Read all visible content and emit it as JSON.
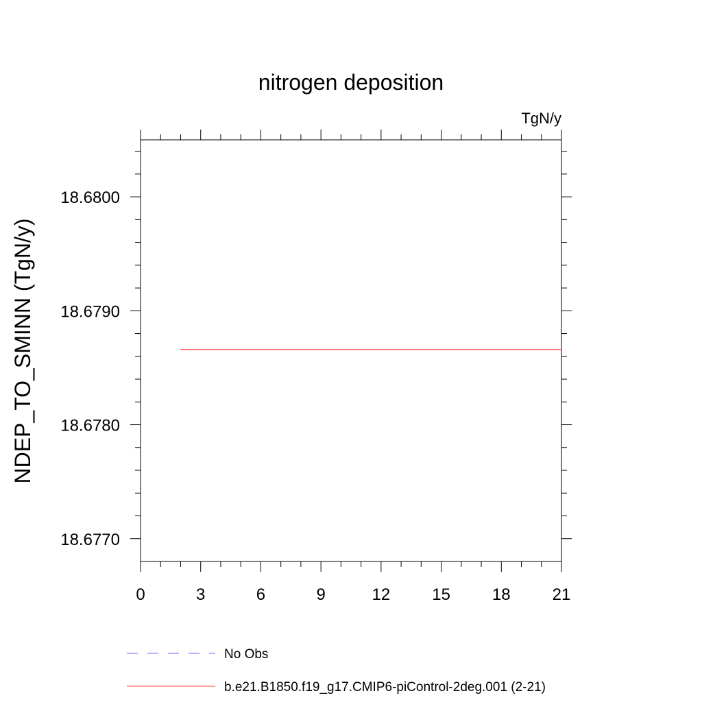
{
  "chart_data": {
    "type": "line",
    "title": "nitrogen deposition",
    "units": "TgN/y",
    "xlabel": "",
    "ylabel": "NDEP_TO_SMINN  (TgN/y)",
    "xlim": [
      0,
      21
    ],
    "ylim": [
      18.6768,
      18.6805
    ],
    "x_ticks": [
      0,
      3,
      6,
      9,
      12,
      15,
      18,
      21
    ],
    "x_tick_labels": [
      "0",
      "3",
      "6",
      "9",
      "12",
      "15",
      "18",
      "21"
    ],
    "y_ticks": [
      18.677,
      18.678,
      18.679,
      18.68
    ],
    "y_tick_labels": [
      "18.6770",
      "18.6780",
      "18.6790",
      "18.6800"
    ],
    "grid": false,
    "legend_position": "bottom",
    "series": [
      {
        "name": "No Obs",
        "color": "#6c6cff",
        "dash": "dashed",
        "x": [],
        "y": []
      },
      {
        "name": "b.e21.B1850.f19_g17.CMIP6-piControl-2deg.001 (2-21)",
        "color": "#ff3b3b",
        "dash": "solid",
        "x": [
          2,
          3,
          4,
          5,
          6,
          7,
          8,
          9,
          10,
          11,
          12,
          13,
          14,
          15,
          16,
          17,
          18,
          19,
          20,
          21
        ],
        "y": [
          18.67866,
          18.67866,
          18.67866,
          18.67866,
          18.67866,
          18.67866,
          18.67866,
          18.67866,
          18.67866,
          18.67866,
          18.67866,
          18.67866,
          18.67866,
          18.67866,
          18.67866,
          18.67866,
          18.67866,
          18.67866,
          18.67866,
          18.67866
        ]
      }
    ]
  }
}
